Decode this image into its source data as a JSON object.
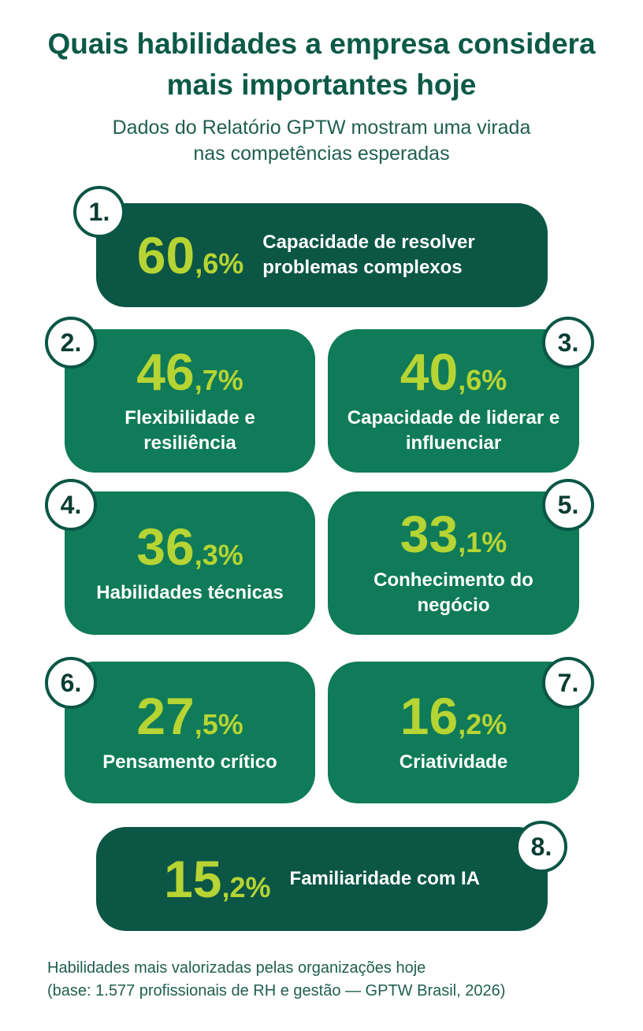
{
  "header": {
    "title": "Quais habilidades a empresa considera mais importantes hoje",
    "subtitle": "Dados do Relatório GPTW mostram uma virada nas competências esperadas"
  },
  "items": [
    {
      "rank": "1.",
      "percent": "60,6%",
      "label": "Capacidade de resolver problemas complexos"
    },
    {
      "rank": "2.",
      "percent": "46,7%",
      "label": "Flexibilidade e resiliência"
    },
    {
      "rank": "3.",
      "percent": "40,6%",
      "label": "Capacidade de liderar e influenciar"
    },
    {
      "rank": "4.",
      "percent": "36,3%",
      "label": "Habilidades técnicas"
    },
    {
      "rank": "5.",
      "percent": "33,1%",
      "label": "Conhecimento do negócio"
    },
    {
      "rank": "6.",
      "percent": "27,5%",
      "label": "Pensamento crítico"
    },
    {
      "rank": "7.",
      "percent": "16,2%",
      "label": "Criatividade"
    },
    {
      "rank": "8.",
      "percent": "15,2%",
      "label": "Familiaridade com IA"
    }
  ],
  "footer": {
    "lines": [
      "Habilidades mais valorizadas pelas organizações hoje",
      "(base: 1.577 profissionais de RH e gestão — GPTW Brasil, 2026)"
    ]
  }
}
